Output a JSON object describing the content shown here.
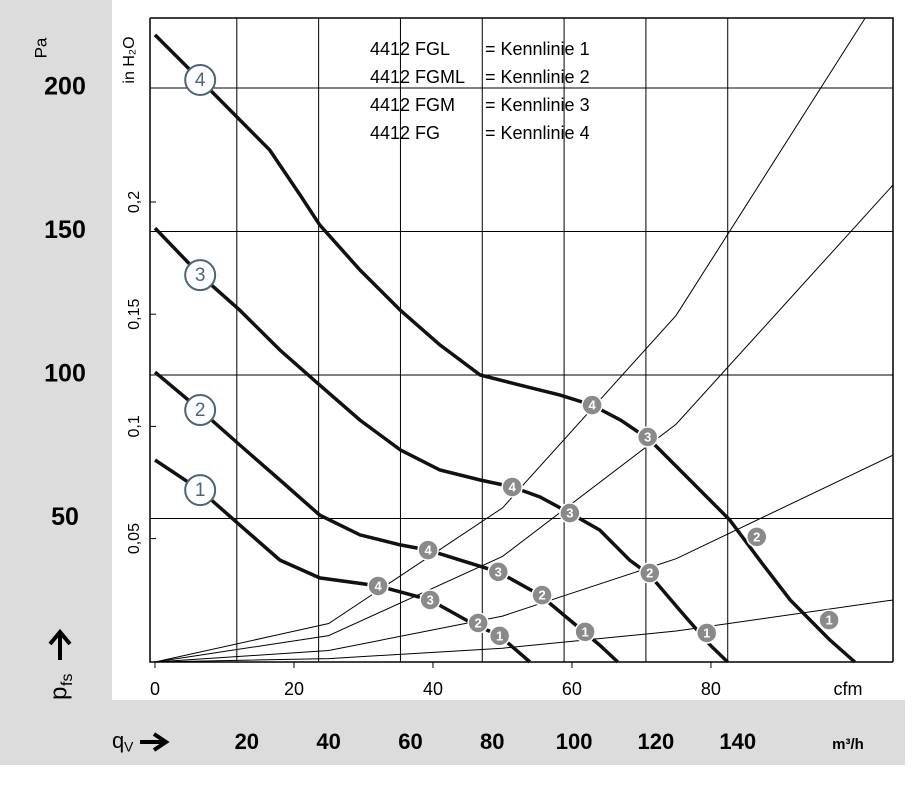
{
  "chart_data": {
    "type": "line",
    "y_label": "Pa",
    "y2_label": "in H₂O",
    "x_label": "cfm",
    "x2_label": "m³/h",
    "y_symbol": {
      "main": "p",
      "sub": "fs"
    },
    "x_symbol": {
      "main": "q",
      "sub": "V"
    },
    "xlim": [
      0,
      106.2
    ],
    "xticks": [
      0,
      20,
      40,
      60,
      80
    ],
    "x2lim": [
      0,
      180.4
    ],
    "x2ticks": [
      20,
      40,
      60,
      80,
      100,
      120,
      140
    ],
    "ylim": [
      0,
      224.4
    ],
    "yticks": [
      0,
      50,
      100,
      150,
      200
    ],
    "y2lim": [
      -0.005,
      0.282
    ],
    "y2ticks": [
      {
        "value": 0.05,
        "label": "0,05"
      },
      {
        "value": 0.1,
        "label": "0,1"
      },
      {
        "value": 0.15,
        "label": "0,15"
      },
      {
        "value": 0.2,
        "label": "0,2"
      }
    ],
    "grid": true,
    "legend": [
      {
        "model": "4412 FGL",
        "curve": "= Kennlinie 1"
      },
      {
        "model": "4412 FGML",
        "curve": "= Kennlinie 2"
      },
      {
        "model": "4412 FGM",
        "curve": "= Kennlinie 3"
      },
      {
        "model": "4412 FG",
        "curve": "= Kennlinie 4"
      }
    ],
    "series": [
      {
        "name": "4",
        "color": "#111111",
        "x": [
          0,
          6.5,
          12.2,
          16.5,
          20.9,
          23.7,
          29.5,
          35.3,
          41,
          46.8,
          52.5,
          58.3,
          62.9,
          67,
          71.2,
          76.98,
          82.7,
          87,
          91.4,
          97.1,
          100.7
        ],
        "values": [
          218.5,
          202.8,
          188.9,
          178.4,
          162.7,
          152.3,
          136.6,
          122.6,
          110.5,
          100,
          96.5,
          93,
          89.5,
          84.3,
          77.4,
          63.4,
          49.5,
          35.5,
          21.6,
          7.7,
          0
        ]
      },
      {
        "name": "3",
        "color": "#111111",
        "x": [
          0,
          6.5,
          12.2,
          17.98,
          23.7,
          29.5,
          35.3,
          41,
          46.8,
          51.4,
          55.4,
          59.7,
          64,
          68.3,
          71.2,
          75.5,
          79.9,
          82.4
        ],
        "values": [
          151.2,
          134.8,
          122.6,
          108.7,
          96.5,
          84.3,
          73.9,
          66.9,
          63.4,
          61,
          57.5,
          51.9,
          46,
          35.5,
          30.3,
          18.1,
          5.9,
          0
        ]
      },
      {
        "name": "2",
        "color": "#111111",
        "x": [
          0,
          6.5,
          12.2,
          17.98,
          23.7,
          29.5,
          35.3,
          39.3,
          43.9,
          49.4,
          55.4,
          59.7,
          64,
          66.6
        ],
        "values": [
          101,
          87.8,
          75.6,
          63.4,
          51.2,
          44.3,
          40.8,
          39,
          35.5,
          31.4,
          23.3,
          14.6,
          5.9,
          0
        ]
      },
      {
        "name": "1",
        "color": "#111111",
        "x": [
          0,
          6.5,
          12.2,
          17.98,
          23.7,
          32.1,
          39.6,
          45.3,
          49.6,
          53.96
        ],
        "values": [
          70.4,
          59.9,
          47.7,
          35.5,
          29.3,
          26.5,
          21.6,
          13.9,
          9.1,
          0
        ]
      }
    ],
    "system_curves": [
      {
        "x": [
          0,
          25,
          50,
          75,
          106.2
        ],
        "values": [
          0,
          1.2,
          4.8,
          10.8,
          21.6
        ]
      },
      {
        "x": [
          0,
          25,
          50,
          75,
          106.2
        ],
        "values": [
          0,
          4.0,
          16.0,
          36.0,
          72.1
        ]
      },
      {
        "x": [
          0,
          25,
          50,
          75,
          106.2
        ],
        "values": [
          0,
          9.2,
          36.8,
          82.9,
          166.2
        ]
      },
      {
        "x": [
          0,
          25,
          50,
          75,
          102.2
        ],
        "values": [
          0,
          13.4,
          53.7,
          120.8,
          224.4
        ]
      }
    ],
    "points": [
      {
        "label": "4",
        "x": 62.9,
        "y": 89.5
      },
      {
        "label": "3",
        "x": 70.9,
        "y": 78.4
      },
      {
        "label": "2",
        "x": 86.6,
        "y": 43.6
      },
      {
        "label": "1",
        "x": 97.0,
        "y": 14.6
      },
      {
        "label": "4",
        "x": 51.4,
        "y": 61.0
      },
      {
        "label": "3",
        "x": 59.7,
        "y": 51.9
      },
      {
        "label": "2",
        "x": 71.2,
        "y": 31.0
      },
      {
        "label": "1",
        "x": 79.4,
        "y": 10.1
      },
      {
        "label": "4",
        "x": 39.3,
        "y": 39.0
      },
      {
        "label": "3",
        "x": 49.4,
        "y": 31.4
      },
      {
        "label": "2",
        "x": 55.7,
        "y": 23.3
      },
      {
        "label": "1",
        "x": 61.9,
        "y": 10.5
      },
      {
        "label": "4",
        "x": 32.1,
        "y": 26.5
      },
      {
        "label": "3",
        "x": 39.6,
        "y": 21.6
      },
      {
        "label": "2",
        "x": 46.5,
        "y": 13.6
      },
      {
        "label": "1",
        "x": 49.6,
        "y": 9.1
      }
    ]
  }
}
